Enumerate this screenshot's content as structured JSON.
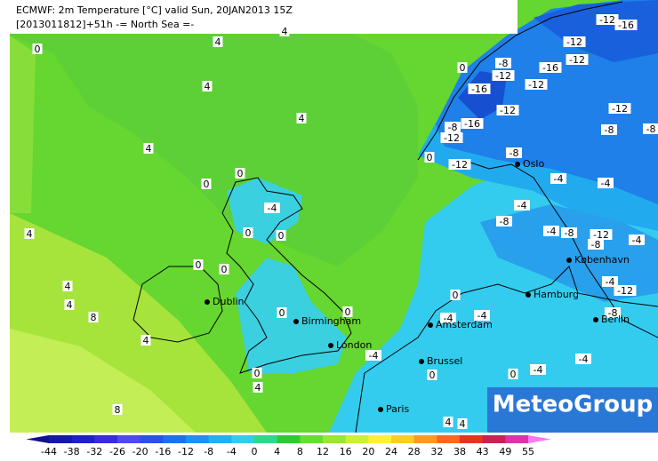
{
  "header": {
    "title": "ECMWF: 2m Temperature [°C] valid Sun, 20JAN2013 15Z",
    "subtitle": "[2013011812]+51h  -= North Sea =-"
  },
  "cities": [
    "Dublin",
    "Birmingham",
    "London",
    "Amsterdam",
    "Brussel",
    "Paris",
    "Hamburg",
    "København",
    "Berlin",
    "Oslo"
  ],
  "contour_labels": [
    0,
    4,
    4,
    4,
    4,
    4,
    0,
    0,
    -4,
    0,
    0,
    4,
    0,
    0,
    4,
    4,
    8,
    0,
    0,
    0,
    -4,
    -4,
    4,
    -4,
    0,
    4,
    0,
    0,
    -4,
    -4,
    8,
    4,
    4,
    -12,
    -16,
    -12,
    -12,
    -16,
    0,
    -8,
    -12,
    -12,
    -16,
    -12,
    -12,
    -8,
    -16,
    -12,
    -8,
    -8,
    0,
    -12,
    -8,
    -4,
    -4,
    -4,
    -8,
    -4,
    -8,
    -12,
    -8,
    -4,
    -4,
    -12,
    -8
  ],
  "colorbar": {
    "ticks": [
      -44,
      -38,
      -32,
      -26,
      -20,
      -16,
      -12,
      -8,
      -4,
      0,
      4,
      8,
      12,
      16,
      20,
      24,
      28,
      32,
      38,
      43,
      49,
      55
    ],
    "colors": [
      "#10108a",
      "#1818a8",
      "#2020c8",
      "#3a2ae0",
      "#5048f0",
      "#2a52e8",
      "#1e70ec",
      "#1e90f0",
      "#22b0f0",
      "#33ccee",
      "#2ed88a",
      "#33c833",
      "#66dd33",
      "#99e633",
      "#ccf033",
      "#fff033",
      "#ffcc22",
      "#ff9922",
      "#ff6622",
      "#e83322",
      "#c82255",
      "#dd33aa",
      "#ff77ee"
    ]
  },
  "logo": "MeteoGroup"
}
